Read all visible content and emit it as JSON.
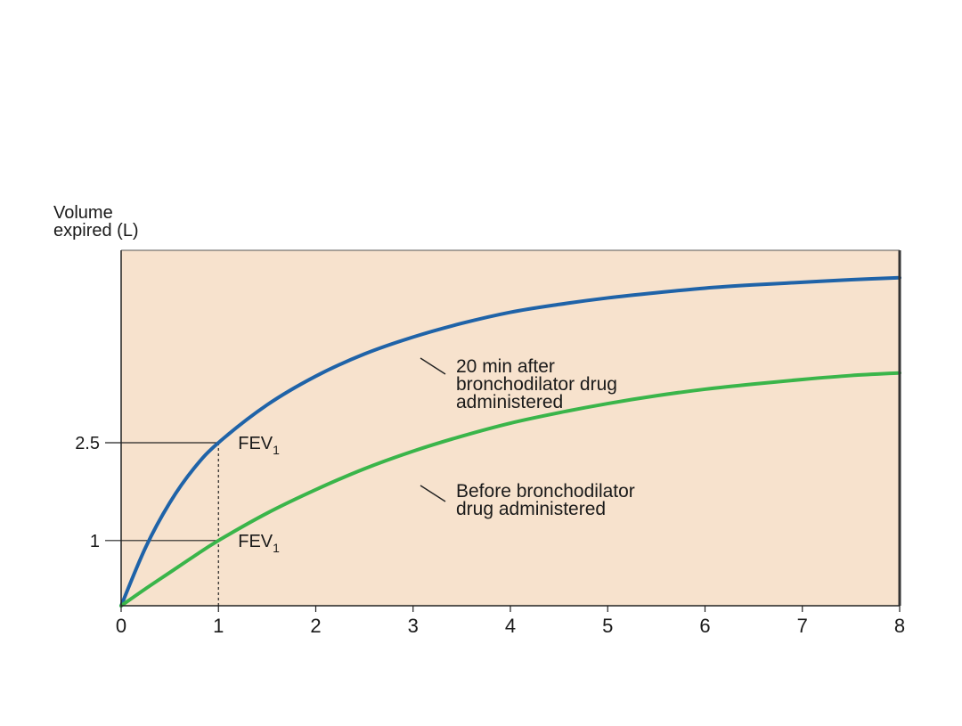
{
  "chart_data": {
    "type": "line",
    "ylabel_line1": "Volume",
    "ylabel_line2": "expired (L)",
    "xlabel": "",
    "xlim": [
      0,
      8
    ],
    "ylim": [
      0,
      5.45
    ],
    "x_ticks": [
      "0",
      "1",
      "2",
      "3",
      "4",
      "5",
      "6",
      "7",
      "8"
    ],
    "y_ticks": [
      {
        "value": 1,
        "label": "1"
      },
      {
        "value": 2.5,
        "label": "2.5"
      }
    ],
    "plot_background": "#f7e2cd",
    "series": [
      {
        "id": "after",
        "color": "#1f63a8",
        "label_lines": [
          "20 min after",
          "bronchodilator drug",
          "administered"
        ],
        "fev_label": "FEV",
        "fev_subscript": "1",
        "fev_value": 2.5,
        "x": [
          0,
          0.25,
          0.5,
          0.75,
          1,
          1.5,
          2,
          2.5,
          3,
          3.5,
          4,
          4.5,
          5,
          5.5,
          6,
          6.5,
          7,
          7.5,
          8
        ],
        "y": [
          0,
          0.89,
          1.58,
          2.11,
          2.5,
          3.08,
          3.52,
          3.86,
          4.12,
          4.33,
          4.5,
          4.62,
          4.72,
          4.8,
          4.87,
          4.92,
          4.96,
          5.0,
          5.03
        ]
      },
      {
        "id": "before",
        "color": "#3ab54a",
        "label_lines": [
          "Before bronchodilator",
          "drug administered"
        ],
        "fev_label": "FEV",
        "fev_subscript": "1",
        "fev_value": 1.0,
        "x": [
          0,
          0.25,
          0.5,
          0.75,
          1,
          1.5,
          2,
          2.5,
          3,
          3.5,
          4,
          4.5,
          5,
          5.5,
          6,
          6.5,
          7,
          7.5,
          8
        ],
        "y": [
          0,
          0.26,
          0.51,
          0.76,
          1.0,
          1.42,
          1.78,
          2.1,
          2.37,
          2.6,
          2.8,
          2.96,
          3.1,
          3.22,
          3.32,
          3.4,
          3.47,
          3.53,
          3.57
        ]
      }
    ]
  }
}
